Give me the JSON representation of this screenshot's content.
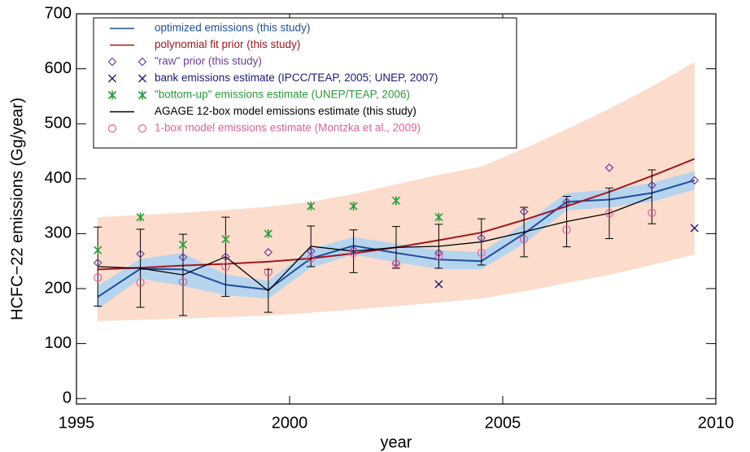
{
  "chart_data": {
    "type": "line",
    "xlabel": "year",
    "ylabel": "HCFC−22 emissions (Gg/year)",
    "xlim": [
      1995,
      2010
    ],
    "ylim": [
      -10,
      700
    ],
    "xticks": [
      1995,
      2000,
      2005,
      2010
    ],
    "yticks": [
      0,
      100,
      200,
      300,
      400,
      500,
      600,
      700
    ],
    "grid": false,
    "legend": "upper left",
    "bands": [
      {
        "color": "#fcdccc",
        "x": [
          1995.5,
          1996.5,
          1997.5,
          1998.5,
          1999.5,
          2000.5,
          2001.5,
          2002.5,
          2003.5,
          2004.5,
          2005.5,
          2006.5,
          2007.5,
          2008.5,
          2009.5
        ],
        "lower": [
          141,
          143,
          146,
          148,
          151,
          156,
          162,
          168,
          175,
          182,
          195,
          210,
          225,
          243,
          262
        ],
        "upper": [
          330,
          334,
          338,
          343,
          349,
          358,
          372,
          390,
          407,
          422,
          455,
          490,
          527,
          568,
          612
        ]
      },
      {
        "color": "#b6d4ee",
        "x": [
          1995.5,
          1996.5,
          1997.5,
          1998.5,
          1999.5,
          2000.5,
          2001.5,
          2002.5,
          2003.5,
          2004.5,
          2005.5,
          2006.5,
          2007.5,
          2008.5,
          2009.5
        ],
        "lower": [
          163,
          218,
          205,
          188,
          182,
          238,
          262,
          248,
          236,
          235,
          282,
          342,
          348,
          358,
          380
        ],
        "upper": [
          205,
          254,
          265,
          226,
          214,
          272,
          294,
          282,
          270,
          266,
          318,
          374,
          380,
          392,
          414
        ]
      }
    ],
    "series": [
      {
        "name": "optimized emissions (this study)",
        "color": "#1f4e9c",
        "kind": "line",
        "x": [
          1995.5,
          1996.5,
          1997.5,
          1998.5,
          1999.5,
          2000.5,
          2001.5,
          2002.5,
          2003.5,
          2004.5,
          2005.5,
          2006.5,
          2007.5,
          2008.5,
          2009.5
        ],
        "values": [
          185,
          236,
          235,
          207,
          198,
          255,
          278,
          265,
          253,
          250,
          300,
          358,
          362,
          374,
          397
        ]
      },
      {
        "name": "polynomial fit prior (this study)",
        "color": "#a0171f",
        "kind": "line",
        "x": [
          1995.5,
          1996.5,
          1997.5,
          1998.5,
          1999.5,
          2000.5,
          2001.5,
          2002.5,
          2003.5,
          2004.5,
          2005.5,
          2006.5,
          2007.5,
          2008.5,
          2009.5
        ],
        "values": [
          235,
          238,
          242,
          245,
          249,
          255,
          264,
          275,
          288,
          302,
          325,
          350,
          376,
          405,
          436
        ]
      },
      {
        "name": "\"raw\" prior (this study)",
        "color": "#6a3fa0",
        "kind": "scatter",
        "marker": "diamond",
        "x": [
          1995.5,
          1996.5,
          1997.5,
          1998.5,
          1999.5,
          2000.5,
          2001.5,
          2002.5,
          2003.5,
          2004.5,
          2005.5,
          2006.5,
          2007.5,
          2008.5,
          2009.5
        ],
        "values": [
          247,
          263,
          257,
          258,
          266,
          268,
          270,
          247,
          265,
          292,
          340,
          358,
          420,
          388,
          397
        ]
      },
      {
        "name": "bank emissions estimate (IPCC/TEAP, 2005; UNEP, 2007)",
        "color": "#1a1a7a",
        "kind": "scatter",
        "marker": "x",
        "x": [
          2003.5,
          2009.5
        ],
        "values": [
          208,
          310
        ]
      },
      {
        "name": "\"bottom-up\" emissions estimate (UNEP/TEAP, 2006)",
        "color": "#2a9a3a",
        "kind": "scatter",
        "marker": "asterisk",
        "x": [
          1995.5,
          1996.5,
          1997.5,
          1998.5,
          1999.5,
          2000.5,
          2001.5,
          2002.5,
          2003.5
        ],
        "values": [
          270,
          330,
          280,
          290,
          300,
          350,
          350,
          360,
          330
        ]
      },
      {
        "name": "AGAGE 12-box model emissions estimate (this study)",
        "color": "#000000",
        "kind": "line",
        "x": [
          1995.5,
          1996.5,
          1997.5,
          1998.5,
          1999.5,
          2000.5,
          2001.5,
          2002.5,
          2003.5,
          2004.5,
          2005.5,
          2006.5,
          2007.5,
          2008.5
        ],
        "values": [
          240,
          237,
          225,
          258,
          196,
          277,
          268,
          275,
          277,
          285,
          303,
          322,
          337,
          367
        ],
        "errors": [
          72,
          71,
          74,
          72,
          39,
          37,
          39,
          38,
          40,
          42,
          45,
          46,
          46,
          49
        ]
      },
      {
        "name": "1-box model emissions estimate (Montzka et al., 2009)",
        "color": "#e0609a",
        "kind": "scatter",
        "marker": "circle",
        "x": [
          1995.5,
          1996.5,
          1997.5,
          1998.5,
          1999.5,
          2000.5,
          2001.5,
          2002.5,
          2003.5,
          2004.5,
          2005.5,
          2006.5,
          2007.5,
          2008.5
        ],
        "values": [
          220,
          211,
          212,
          240,
          230,
          255,
          265,
          245,
          260,
          265,
          290,
          307,
          337,
          338
        ]
      }
    ]
  }
}
